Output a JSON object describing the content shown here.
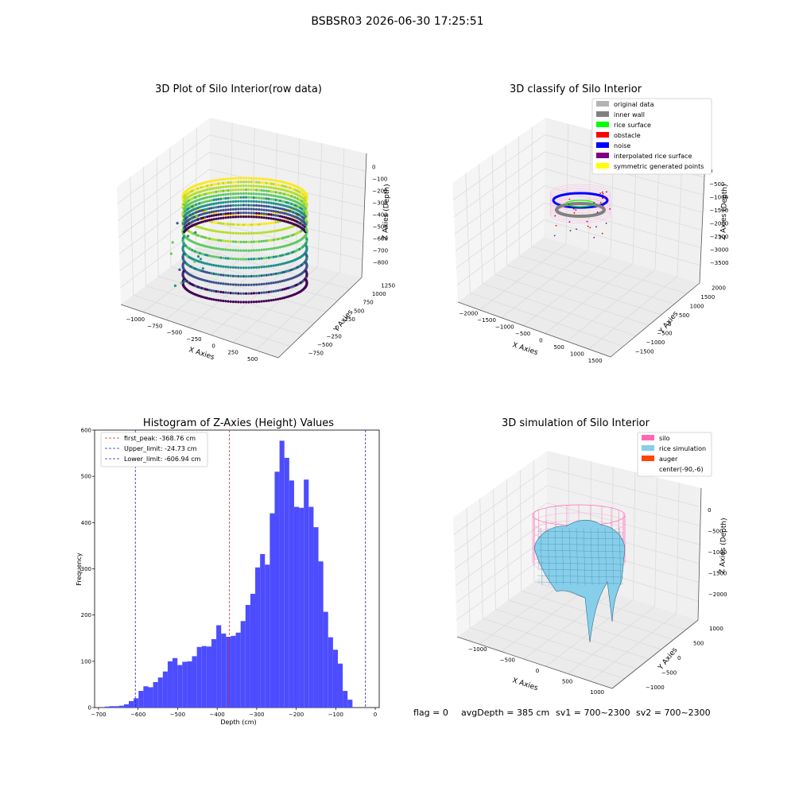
{
  "figure_title": "BSBSR03 2026-06-30 17:25:51",
  "status_line": {
    "flag": "flag = 0",
    "avg": "avgDepth = 385 cm",
    "sv1": "sv1 = 700~2300",
    "sv2": "sv2 = 700~2300"
  },
  "colors": {
    "histogram_bar": "#4d4dff",
    "peak_line": "#e0201f",
    "limit_line": "#2020b0",
    "silo": "#ff69b4",
    "rice_simulation": "#87ceeb",
    "auger": "#ff4500",
    "original_data": "#b3b3b3",
    "inner_wall": "#808080",
    "rice_surface": "#00ff00",
    "obstacle": "#ff0000",
    "noise": "#0000ff",
    "interpolated_rice_surface": "#800080",
    "symmetric_generated_points": "#ffff00"
  },
  "chart_data": [
    {
      "type": "scatter",
      "title": "3D Plot of Silo Interior(row data)",
      "xlabel": "X Axies",
      "ylabel": "Y Axies",
      "zlabel": "Z Axies (Depth)",
      "x_ticks": [
        "−1000",
        "−750",
        "−500",
        "−250",
        "0",
        "250",
        "500"
      ],
      "y_ticks": [
        "−750",
        "−500",
        "−250",
        "0",
        "250",
        "500",
        "750",
        "1000",
        "1250"
      ],
      "z_ticks": [
        "0",
        "−100",
        "−200",
        "−300",
        "−400",
        "−500",
        "−600",
        "−700",
        "−800"
      ],
      "xlim": [
        -1100,
        550
      ],
      "ylim": [
        -800,
        1300
      ],
      "zlim": [
        -850,
        0
      ],
      "colormap": "viridis"
    },
    {
      "type": "scatter",
      "title": "3D classify of Silo Interior",
      "x_ticks": [
        "−2000",
        "−1500",
        "−1000",
        "−500",
        "0",
        "500",
        "1000",
        "1500"
      ],
      "y_ticks": [
        "−1500",
        "−1000",
        "−500",
        "0",
        "500",
        "1000",
        "1500",
        "2000"
      ],
      "z_ticks": [
        "0",
        "−500",
        "−1000",
        "−1500",
        "−2000",
        "−2500",
        "−3000",
        "−3500"
      ],
      "xlabel": "X Axies",
      "ylabel": "Y Axies",
      "zlabel": "Z Axies (Depth)",
      "legend_position": "top-right",
      "legend": [
        {
          "label": "original data",
          "color": "#b3b3b3"
        },
        {
          "label": "inner wall",
          "color": "#808080"
        },
        {
          "label": "rice surface",
          "color": "#00ff00"
        },
        {
          "label": "obstacle",
          "color": "#ff0000"
        },
        {
          "label": "noise",
          "color": "#0000ff"
        },
        {
          "label": "interpolated rice surface",
          "color": "#800080"
        },
        {
          "label": "symmetric generated points",
          "color": "#ffff00"
        }
      ]
    },
    {
      "type": "bar",
      "title": "Histogram of Z-Axies (Height) Values",
      "xlabel": "Depth (cm)",
      "ylabel": "Frequency",
      "xlim": [
        -710,
        10
      ],
      "ylim": [
        0,
        600
      ],
      "x_ticks": [
        -700,
        -600,
        -500,
        -400,
        -300,
        -200,
        -100,
        0
      ],
      "y_ticks": [
        0,
        100,
        200,
        300,
        400,
        500,
        600
      ],
      "bin_start": -685,
      "bin_width": 12.3,
      "values": [
        2,
        3,
        3,
        4,
        7,
        14,
        20,
        36,
        46,
        44,
        55,
        65,
        78,
        100,
        107,
        92,
        99,
        100,
        111,
        131,
        133,
        132,
        148,
        178,
        160,
        153,
        155,
        162,
        187,
        222,
        246,
        303,
        332,
        309,
        420,
        510,
        577,
        540,
        491,
        434,
        432,
        493,
        434,
        390,
        316,
        207,
        152,
        125,
        95,
        36,
        17
      ],
      "vlines": [
        {
          "label": "first_peak: -368.76 cm",
          "x": -368.76,
          "color": "#e0201f"
        },
        {
          "label": "Upper_limit: -24.73 cm",
          "x": -24.73,
          "color": "#2020b0"
        },
        {
          "label": "Lower_limit: -606.94 cm",
          "x": -606.94,
          "color": "#2020b0"
        }
      ],
      "legend_position": "top-left"
    },
    {
      "type": "area",
      "title": "3D simulation of Silo Interior",
      "xlabel": "X Axies",
      "ylabel": "Y Axies",
      "zlabel": "Z Axies (Depth)",
      "x_ticks": [
        "−1000",
        "−500",
        "0",
        "500",
        "1000"
      ],
      "y_ticks": [
        "−1000",
        "−500",
        "0",
        "500",
        "1000"
      ],
      "z_ticks": [
        "0",
        "−500",
        "−1000",
        "−1500",
        "−2000"
      ],
      "legend_position": "top-right",
      "legend": [
        {
          "label": "silo",
          "color": "#ff69b4"
        },
        {
          "label": "rice simulation",
          "color": "#87ceeb"
        },
        {
          "label": "auger",
          "color": "#ff4500"
        },
        {
          "label": "center(-90,-6)",
          "color": ""
        }
      ]
    }
  ]
}
